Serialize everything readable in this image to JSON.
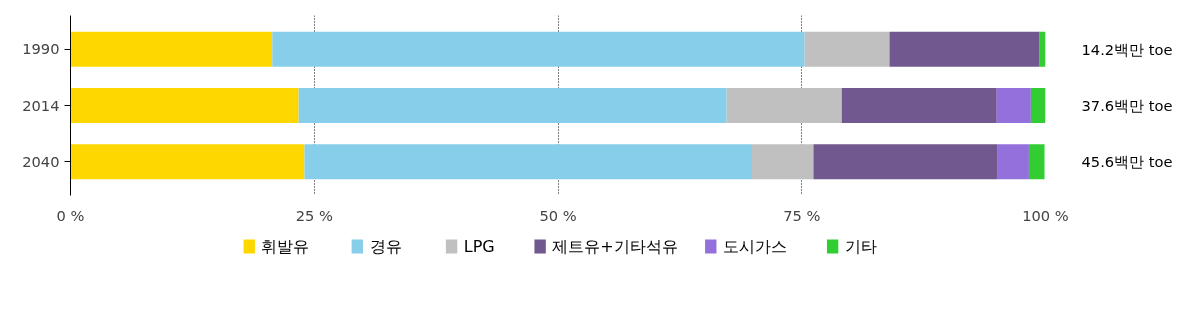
{
  "chart_data": {
    "type": "bar",
    "orientation": "horizontal",
    "stacked": true,
    "categories": [
      "1990",
      "2014",
      "2040"
    ],
    "series": [
      {
        "name": "휘발유",
        "color": "#ffd700",
        "values": [
          20.7,
          23.4,
          24.0
        ]
      },
      {
        "name": "경유",
        "color": "#87ceeb",
        "values": [
          54.6,
          43.9,
          45.9
        ]
      },
      {
        "name": "LPG",
        "color": "#c0c0c0",
        "values": [
          8.7,
          11.8,
          6.3
        ]
      },
      {
        "name": "제트유+기타석유",
        "color": "#71588f",
        "values": [
          15.4,
          15.9,
          18.9
        ]
      },
      {
        "name": "도시가스",
        "color": "#9370db",
        "values": [
          0,
          3.5,
          3.2
        ]
      },
      {
        "name": "기타",
        "color": "#32cd32",
        "values": [
          0.6,
          1.5,
          1.6
        ]
      }
    ],
    "xlim": [
      0,
      100
    ],
    "xticks": [
      {
        "value": 0,
        "label": "0 %"
      },
      {
        "value": 25,
        "label": "25 %"
      },
      {
        "value": 50,
        "label": "50 %"
      },
      {
        "value": 75,
        "label": "75 %"
      },
      {
        "value": 100,
        "label": "100 %"
      }
    ],
    "grid": "x",
    "legend": "bottom",
    "annotations": [
      "14.2백만 toe",
      "37.6백만 toe",
      "45.6백만 toe"
    ]
  }
}
